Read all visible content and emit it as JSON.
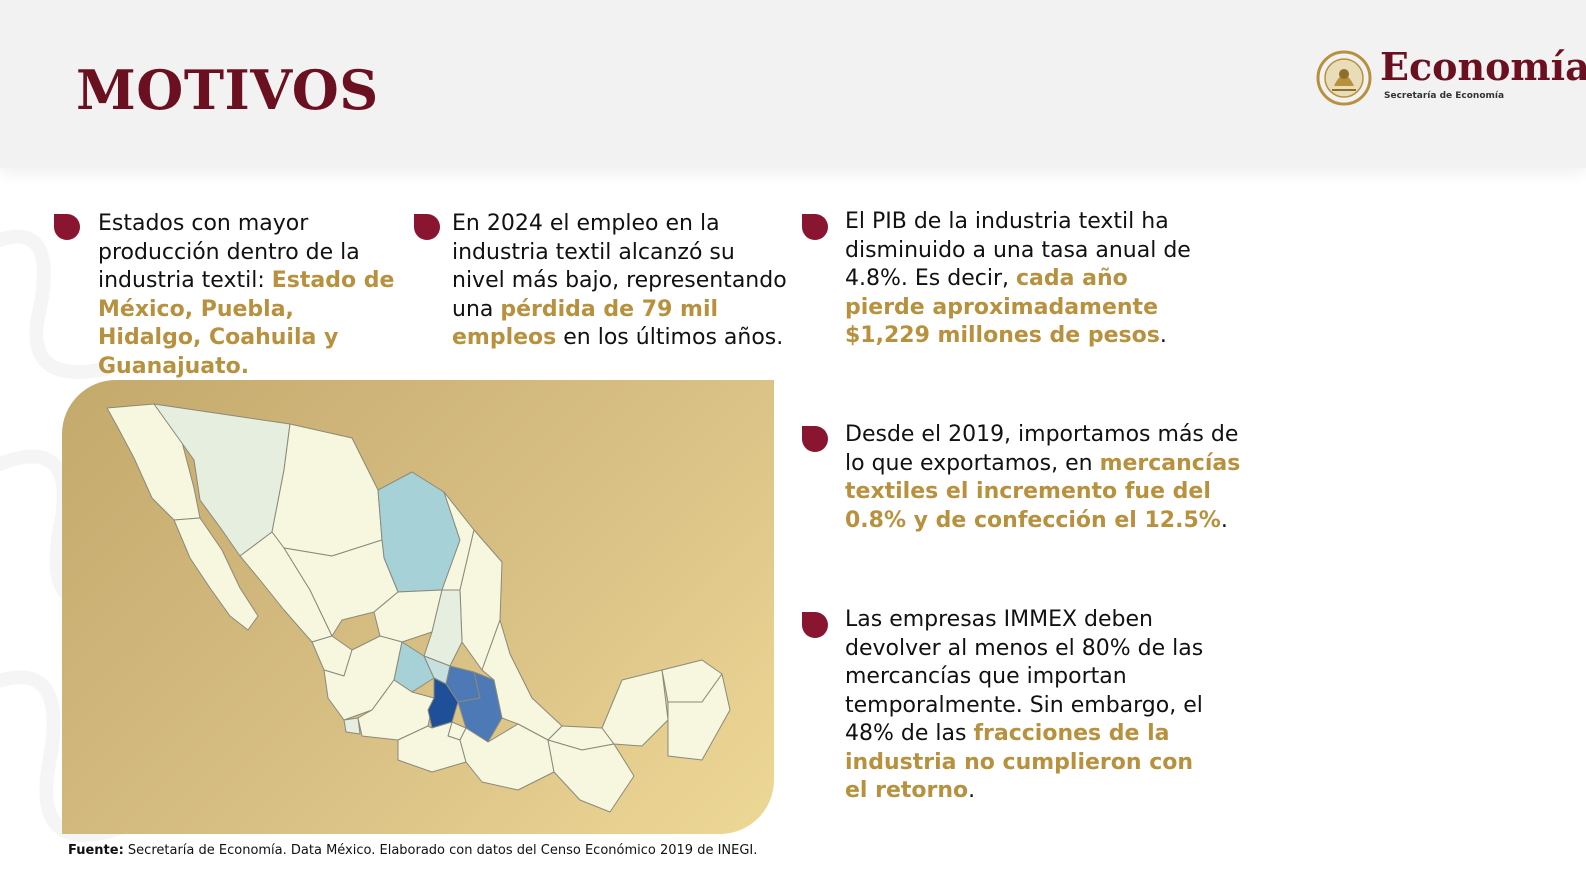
{
  "header": {
    "title": "MOTIVOS",
    "logo": {
      "name": "Economía",
      "subtitle": "Secretaría de Economía",
      "emblem": "mexico-seal-emblem"
    }
  },
  "points": [
    {
      "pre": "Estados con mayor producción dentro de la industria textil: ",
      "highlight": "Estado de México, Puebla, Hidalgo, Coahuila y Guanajuato.",
      "post": ""
    },
    {
      "pre": "En 2024 el empleo en la industria textil alcanzó su nivel más bajo, representando una ",
      "highlight": "pérdida de 79 mil empleos",
      "post": " en los últimos años."
    },
    {
      "pre": "El PIB de la industria textil ha disminuido a una tasa anual de 4.8%. Es decir, ",
      "highlight": "cada año pierde aproximadamente $1,229 millones de pesos",
      "post": "."
    },
    {
      "pre": "Desde el 2019, importamos más de lo que exportamos, en ",
      "highlight": "mercancías textiles el incremento fue del 0.8% y de confección el 12.5%",
      "post": "."
    },
    {
      "pre": "Las empresas IMMEX deben devolver al menos el 80% de las mercancías que importan temporalmente. Sin embargo, el 48% de las ",
      "highlight": "fracciones de la industria no cumplieron con el retorno",
      "post": "."
    }
  ],
  "source": {
    "label": "Fuente:",
    "text": " Secretaría de Economía. Data México. Elaborado con datos del Censo Económico 2019 de INEGI."
  },
  "colors": {
    "brand": "#6b1020",
    "bullet": "#8a1530",
    "highlight": "#b8913f",
    "map_panel": "#d8bf84",
    "map_low": "#f7f6df",
    "map_mid": "#a6d1d6",
    "map_high": "#1e4f98"
  }
}
